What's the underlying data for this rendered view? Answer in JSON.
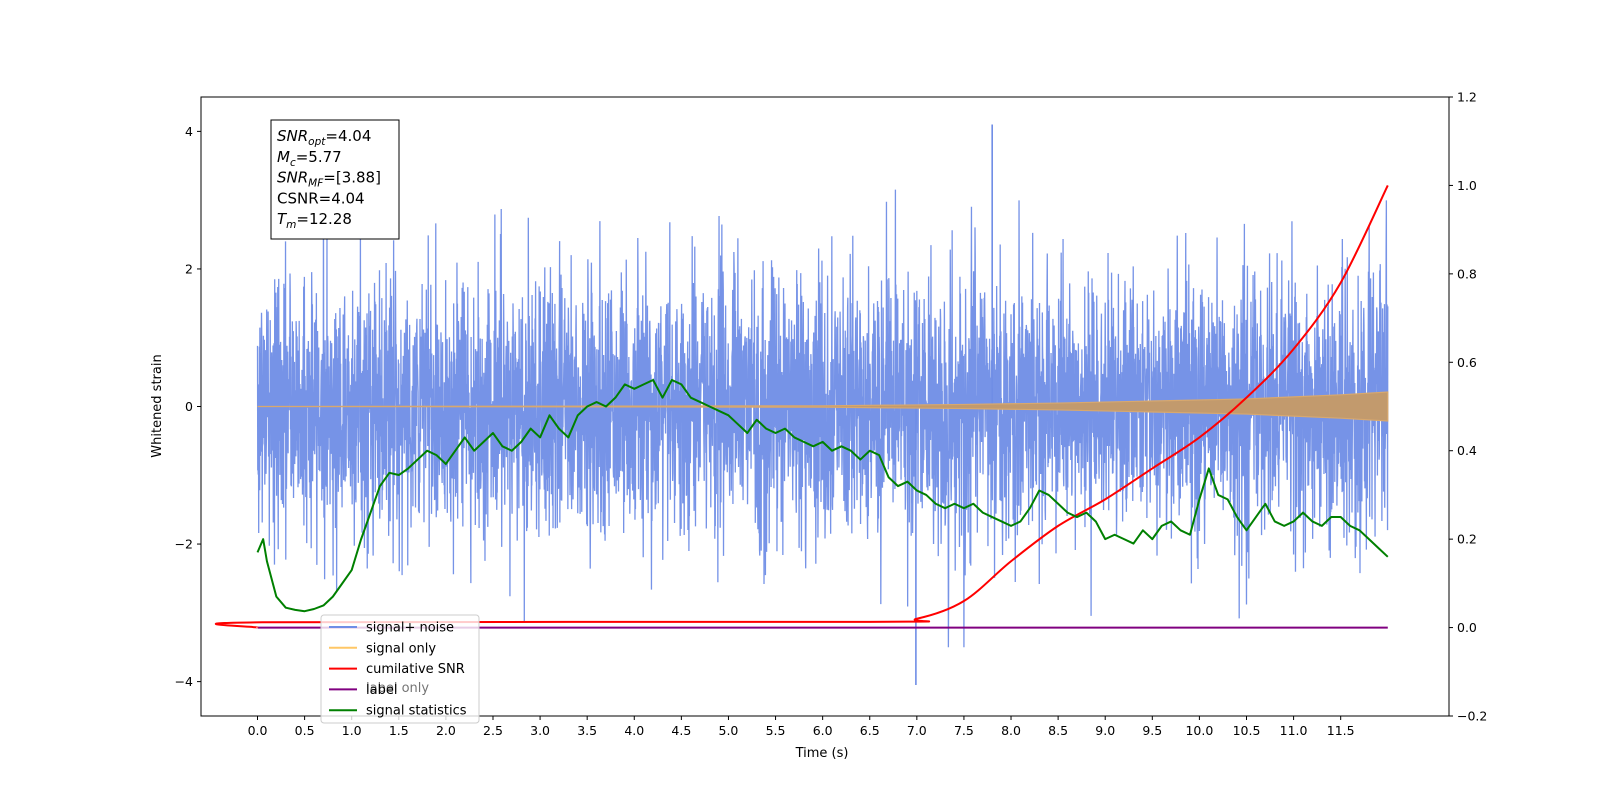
{
  "chart_data": {
    "type": "line",
    "xlabel": "Time (s)",
    "ylabel": "Whitened strain",
    "xlim": [
      -0.6,
      12.65
    ],
    "ylim": [
      -4.5,
      4.5
    ],
    "y2lim": [
      -0.2,
      1.2
    ],
    "x_ticks": [
      0.0,
      0.5,
      1.0,
      1.5,
      2.0,
      2.5,
      3.0,
      3.5,
      4.0,
      4.5,
      5.0,
      5.5,
      6.0,
      6.5,
      7.0,
      7.5,
      8.0,
      8.5,
      9.0,
      9.5,
      10.0,
      10.5,
      11.0,
      11.5
    ],
    "x_tick_labels": [
      "0.0",
      "0.5",
      "1.0",
      "1.5",
      "2.0",
      "2.5",
      "3.0",
      "3.5",
      "4.0",
      "4.5",
      "5.0",
      "5.5",
      "6.0",
      "6.5",
      "7.0",
      "7.5",
      "8.0",
      "8.5",
      "9.0",
      "9.5",
      "10.0",
      "10.5",
      "11.0",
      "11.5"
    ],
    "y_ticks": [
      -4,
      -2,
      0,
      2,
      4
    ],
    "y_tick_labels": [
      "−4",
      "−2",
      "0",
      "2",
      "4"
    ],
    "y2_ticks": [
      -0.2,
      0.0,
      0.2,
      0.4,
      0.6,
      0.8,
      1.0,
      1.2
    ],
    "y2_tick_labels": [
      "−0.2",
      "0.0",
      "0.2",
      "0.4",
      "0.6",
      "0.8",
      "1.0",
      "1.2"
    ],
    "annotation": {
      "lines": [
        {
          "sym": "SNR",
          "sub": "opt",
          "text": "=4.04"
        },
        {
          "sym": "M",
          "sub": "c",
          "text": "=5.77"
        },
        {
          "sym": "SNR",
          "sub": "MF",
          "text": "=[3.88]"
        },
        {
          "sym": "",
          "sub": "",
          "text": "CSNR=4.04"
        },
        {
          "sym": "T",
          "sub": "m",
          "text": "=12.28"
        }
      ]
    },
    "legend": {
      "location": "lower-left",
      "entries": [
        {
          "label": "signal+ noise",
          "color": "#6f8de6"
        },
        {
          "label": "signal only",
          "color": "#ffc766"
        },
        {
          "label": "cumilative SNR",
          "color": "#ff0000"
        },
        {
          "label": "label",
          "color": "#800080"
        },
        {
          "label": "signal statistics",
          "color": "#008000"
        }
      ],
      "hidden_labels": [
        "label only"
      ]
    },
    "series": [
      {
        "name": "signal+ noise",
        "axis": "left",
        "color": "#6f8de6",
        "style": "dense-noise",
        "x_range": [
          0.0,
          12.0
        ],
        "typical_envelope": [
          -2.0,
          2.2
        ],
        "peak_max": 4.1,
        "peak_min": -4.05
      },
      {
        "name": "signal only",
        "axis": "left",
        "color": "#ffc766",
        "style": "chirp-envelope",
        "x": [
          0.0,
          6.0,
          7.5,
          8.5,
          9.5,
          10.5,
          11.0,
          11.5,
          12.0
        ],
        "amplitude": [
          0.0,
          0.01,
          0.03,
          0.05,
          0.08,
          0.11,
          0.14,
          0.17,
          0.21
        ]
      },
      {
        "name": "cumilative SNR",
        "axis": "right",
        "color": "#ff0000",
        "x": [
          0.0,
          0.05,
          6.5,
          7.0,
          7.5,
          8.0,
          8.5,
          9.0,
          9.5,
          10.0,
          10.5,
          11.0,
          11.5,
          12.0
        ],
        "values": [
          0.0,
          0.012,
          0.013,
          0.02,
          0.06,
          0.15,
          0.23,
          0.29,
          0.36,
          0.43,
          0.52,
          0.63,
          0.78,
          1.0
        ]
      },
      {
        "name": "label",
        "axis": "right",
        "color": "#800080",
        "x": [
          0.0,
          12.0
        ],
        "values": [
          0.0,
          0.0
        ]
      },
      {
        "name": "signal statistics",
        "axis": "right",
        "color": "#008000",
        "x": [
          0.0,
          0.06,
          0.1,
          0.2,
          0.3,
          0.4,
          0.5,
          0.6,
          0.7,
          0.8,
          0.9,
          1.0,
          1.1,
          1.2,
          1.3,
          1.4,
          1.5,
          1.6,
          1.7,
          1.8,
          1.9,
          2.0,
          2.1,
          2.2,
          2.3,
          2.4,
          2.5,
          2.6,
          2.7,
          2.8,
          2.9,
          3.0,
          3.1,
          3.2,
          3.3,
          3.4,
          3.5,
          3.6,
          3.7,
          3.8,
          3.9,
          4.0,
          4.1,
          4.2,
          4.3,
          4.4,
          4.5,
          4.6,
          4.7,
          4.8,
          4.9,
          5.0,
          5.1,
          5.2,
          5.3,
          5.4,
          5.5,
          5.6,
          5.7,
          5.8,
          5.9,
          6.0,
          6.1,
          6.2,
          6.3,
          6.4,
          6.5,
          6.6,
          6.7,
          6.8,
          6.9,
          7.0,
          7.1,
          7.2,
          7.3,
          7.4,
          7.5,
          7.6,
          7.7,
          7.8,
          7.9,
          8.0,
          8.1,
          8.2,
          8.3,
          8.4,
          8.5,
          8.6,
          8.7,
          8.8,
          8.9,
          9.0,
          9.1,
          9.2,
          9.3,
          9.4,
          9.5,
          9.6,
          9.7,
          9.8,
          9.9,
          10.0,
          10.1,
          10.2,
          10.3,
          10.4,
          10.5,
          10.6,
          10.7,
          10.8,
          10.9,
          11.0,
          11.1,
          11.2,
          11.3,
          11.4,
          11.5,
          11.6,
          11.7,
          11.8,
          11.9,
          12.0
        ],
        "values": [
          0.17,
          0.2,
          0.15,
          0.07,
          0.045,
          0.04,
          0.037,
          0.042,
          0.05,
          0.07,
          0.1,
          0.13,
          0.2,
          0.26,
          0.32,
          0.35,
          0.345,
          0.36,
          0.38,
          0.4,
          0.39,
          0.37,
          0.4,
          0.43,
          0.4,
          0.42,
          0.44,
          0.41,
          0.4,
          0.42,
          0.45,
          0.43,
          0.48,
          0.45,
          0.43,
          0.48,
          0.5,
          0.51,
          0.5,
          0.52,
          0.55,
          0.54,
          0.55,
          0.56,
          0.52,
          0.56,
          0.55,
          0.52,
          0.51,
          0.5,
          0.49,
          0.48,
          0.46,
          0.44,
          0.47,
          0.45,
          0.44,
          0.45,
          0.43,
          0.42,
          0.41,
          0.42,
          0.4,
          0.41,
          0.4,
          0.38,
          0.4,
          0.39,
          0.34,
          0.32,
          0.33,
          0.31,
          0.3,
          0.28,
          0.27,
          0.28,
          0.27,
          0.28,
          0.26,
          0.25,
          0.24,
          0.23,
          0.24,
          0.27,
          0.31,
          0.3,
          0.28,
          0.26,
          0.25,
          0.26,
          0.24,
          0.2,
          0.21,
          0.2,
          0.19,
          0.22,
          0.2,
          0.23,
          0.24,
          0.22,
          0.21,
          0.29,
          0.36,
          0.3,
          0.29,
          0.25,
          0.22,
          0.25,
          0.28,
          0.24,
          0.23,
          0.24,
          0.26,
          0.24,
          0.23,
          0.25,
          0.25,
          0.23,
          0.22,
          0.2,
          0.18,
          0.16
        ]
      }
    ]
  }
}
